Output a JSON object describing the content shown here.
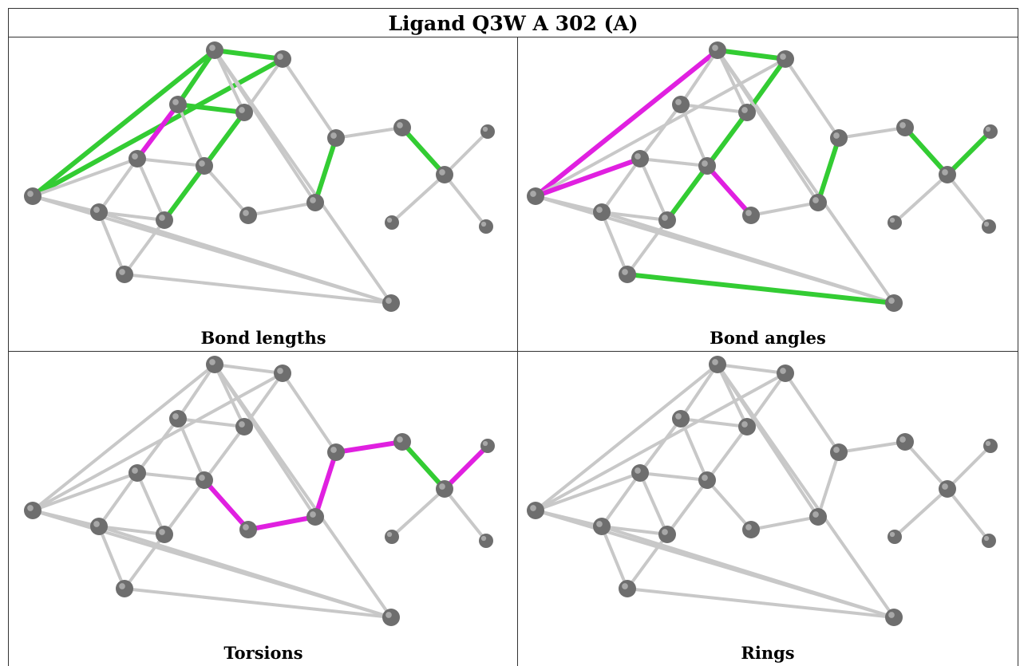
{
  "title": "Ligand Q3W A 302 (A)",
  "panels": [
    {
      "caption": "Bond lengths",
      "highlight": {
        "green": [
          [
            1,
            0
          ],
          [
            1,
            2
          ],
          [
            2,
            0
          ],
          [
            1,
            3
          ],
          [
            3,
            4
          ],
          [
            4,
            8
          ],
          [
            1,
            14
          ],
          [
            2,
            14
          ],
          [
            6,
            16
          ],
          [
            14,
            15
          ],
          [
            15,
            16
          ],
          [
            12,
            13
          ],
          [
            12,
            17
          ],
          [
            13,
            18
          ],
          [
            18,
            19
          ]
        ],
        "magenta": [
          [
            3,
            5
          ]
        ]
      }
    },
    {
      "caption": "Bond angles",
      "highlight": {
        "green": [
          [
            1,
            2
          ],
          [
            2,
            14
          ],
          [
            1,
            14
          ],
          [
            4,
            8
          ],
          [
            0,
            8
          ],
          [
            0,
            5
          ],
          [
            5,
            10
          ],
          [
            10,
            9
          ],
          [
            14,
            15
          ],
          [
            15,
            16
          ],
          [
            16,
            18
          ],
          [
            12,
            13
          ],
          [
            2,
            4
          ],
          [
            0,
            14
          ],
          [
            12,
            17
          ],
          [
            18,
            19
          ]
        ],
        "magenta": [
          [
            1,
            0
          ],
          [
            3,
            0
          ],
          [
            0,
            5
          ],
          [
            0,
            9
          ],
          [
            4,
            6
          ],
          [
            6,
            12
          ],
          [
            6,
            11
          ],
          [
            18,
            20
          ]
        ]
      }
    },
    {
      "caption": "Torsions",
      "highlight": {
        "green": [
          [
            15,
            16
          ]
        ],
        "magenta": [
          [
            11,
            6
          ],
          [
            11,
            12
          ],
          [
            12,
            13
          ],
          [
            13,
            15
          ],
          [
            16,
            18
          ]
        ]
      }
    },
    {
      "caption": "Rings",
      "highlight": {
        "green": [],
        "magenta": []
      }
    }
  ],
  "colors": {
    "green": "#33cc33",
    "magenta": "#e020e0",
    "grey": "#c8c8c8",
    "atom": "#6e6e6e"
  }
}
